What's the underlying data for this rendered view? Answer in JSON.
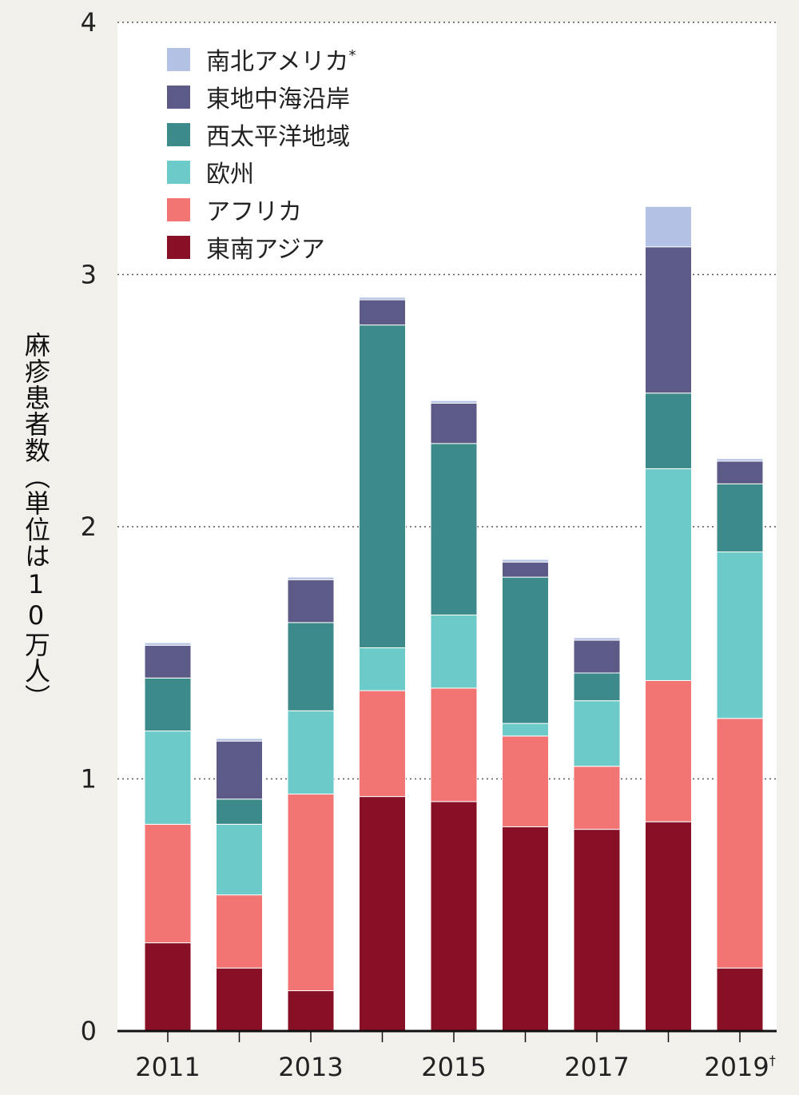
{
  "chart_data": {
    "type": "bar",
    "stacked": true,
    "categories": [
      "2011",
      "2012",
      "2013",
      "2014",
      "2015",
      "2016",
      "2017",
      "2018",
      "2019"
    ],
    "x_tick_labels": [
      {
        "label": "2011",
        "category": "2011"
      },
      {
        "label": "2013",
        "category": "2013"
      },
      {
        "label": "2015",
        "category": "2015"
      },
      {
        "label": "2017",
        "category": "2017"
      },
      {
        "label": "2019",
        "category": "2019",
        "superscript": "†"
      }
    ],
    "ylabel": "麻疹患者数（単位は10万人）",
    "ylim": [
      0,
      4
    ],
    "y_ticks": [
      "0",
      "1",
      "2",
      "3",
      "4"
    ],
    "grid": "horizontal dotted",
    "legend_position": "top-left",
    "series": [
      {
        "name": "東南アジア",
        "color": "#870f26",
        "values": [
          0.35,
          0.25,
          0.16,
          0.93,
          0.91,
          0.81,
          0.8,
          0.83,
          0.25
        ]
      },
      {
        "name": "アフリカ",
        "color": "#f27573",
        "values": [
          0.47,
          0.29,
          0.78,
          0.42,
          0.45,
          0.36,
          0.25,
          0.56,
          0.99
        ]
      },
      {
        "name": "欧州",
        "color": "#6ccac8",
        "values": [
          0.37,
          0.28,
          0.33,
          0.17,
          0.29,
          0.05,
          0.26,
          0.84,
          0.66
        ]
      },
      {
        "name": "西太平洋地域",
        "color": "#3d8a8b",
        "values": [
          0.21,
          0.1,
          0.35,
          1.28,
          0.68,
          0.58,
          0.11,
          0.3,
          0.27
        ]
      },
      {
        "name": "東地中海沿岸",
        "color": "#5c5a86",
        "values": [
          0.13,
          0.23,
          0.17,
          0.1,
          0.16,
          0.06,
          0.13,
          0.58,
          0.09
        ]
      },
      {
        "name": "南北アメリカ",
        "legend_mark": "*",
        "color": "#b3c1e4",
        "values": [
          0.01,
          0.01,
          0.01,
          0.01,
          0.01,
          0.01,
          0.01,
          0.16,
          0.01
        ]
      }
    ]
  }
}
